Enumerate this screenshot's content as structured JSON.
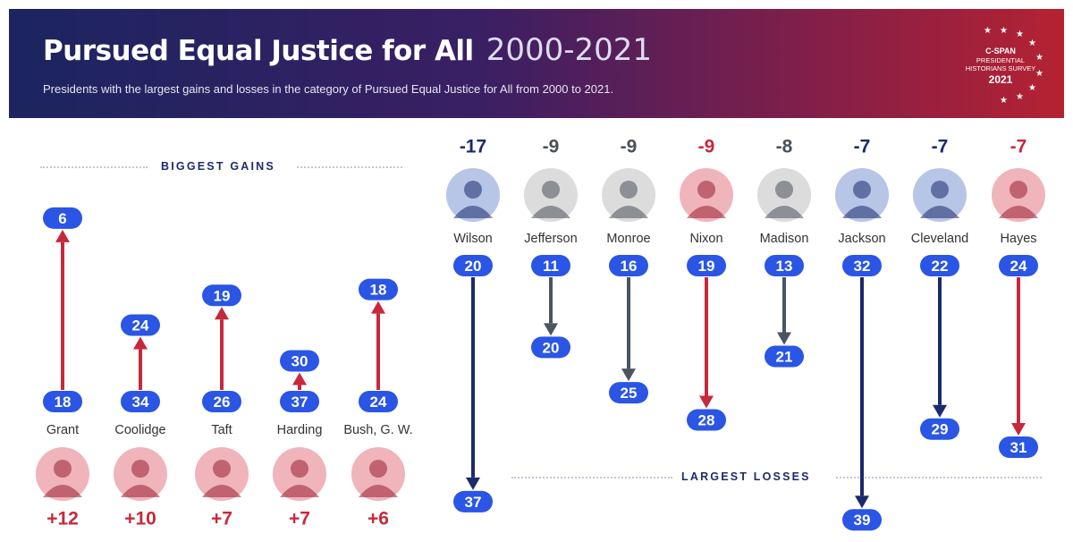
{
  "header": {
    "title": "Pursued Equal Justice for All",
    "years": "2000-2021",
    "subtitle": "Presidents with the largest gains and losses in the category of Pursued Equal Justice for All from 2000 to 2021.",
    "logo_lines": [
      "C-SPAN",
      "PRESIDENTIAL",
      "HISTORIANS SURVEY",
      "2021"
    ]
  },
  "colors": {
    "gain_red": "#c8283c",
    "loss_navy": "#1a2a6c",
    "loss_gray": "#4a5560",
    "pill_blue": "#2a55e5",
    "portrait_red_bg": "#f0b4bb",
    "portrait_blue_bg": "#b7c5e6",
    "portrait_gray_bg": "#dcdcdc"
  },
  "chart_data": [
    {
      "type": "bar",
      "title": "BIGGEST GAINS",
      "rank_axis": "rank (1 = best)",
      "categories": [
        "Grant",
        "Coolidge",
        "Taft",
        "Harding",
        "Bush, G. W."
      ],
      "series": [
        {
          "name": "2000",
          "values": [
            18,
            34,
            26,
            37,
            24
          ]
        },
        {
          "name": "2021",
          "values": [
            6,
            24,
            19,
            30,
            18
          ]
        }
      ],
      "change_labels": [
        "+12",
        "+10",
        "+7",
        "+7",
        "+6"
      ]
    },
    {
      "type": "bar",
      "title": "LARGEST LOSSES",
      "rank_axis": "rank (1 = best)",
      "categories": [
        "Wilson",
        "Jefferson",
        "Monroe",
        "Nixon",
        "Madison",
        "Jackson",
        "Cleveland",
        "Hayes"
      ],
      "series": [
        {
          "name": "2000",
          "values": [
            20,
            11,
            16,
            19,
            13,
            32,
            22,
            24
          ]
        },
        {
          "name": "2021",
          "values": [
            37,
            20,
            25,
            28,
            21,
            39,
            29,
            31
          ]
        }
      ],
      "change_labels": [
        "-17",
        "-9",
        "-9",
        "-9",
        "-8",
        "-7",
        "-7",
        "-7"
      ],
      "arrow_colors": [
        "navy",
        "gray",
        "gray",
        "red",
        "gray",
        "navy",
        "navy",
        "red"
      ]
    }
  ]
}
